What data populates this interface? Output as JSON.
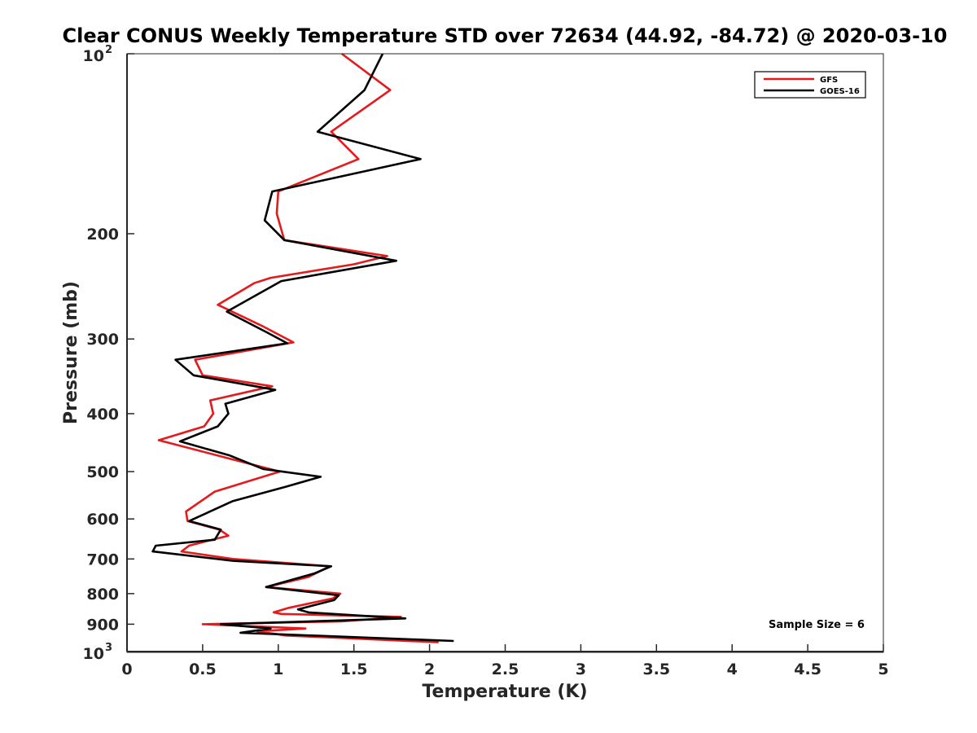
{
  "chart_data": {
    "type": "line",
    "title": "Clear CONUS Weekly Temperature STD over 72634 (44.92, -84.72) @ 2020-03-10",
    "xlabel": "Temperature (K)",
    "ylabel": "Pressure (mb)",
    "xlim": [
      0,
      5
    ],
    "ylim": [
      100,
      1000
    ],
    "y_scale": "log",
    "y_reversed": true,
    "x_ticks": [
      "0",
      "0.5",
      "1",
      "1.5",
      "2",
      "2.5",
      "3",
      "3.5",
      "4",
      "4.5",
      "5"
    ],
    "y_ticks": [
      {
        "value": 100,
        "base": "10",
        "exp": "2"
      },
      {
        "value": 200,
        "label": "200"
      },
      {
        "value": 300,
        "label": "300"
      },
      {
        "value": 400,
        "label": "400"
      },
      {
        "value": 500,
        "label": "500"
      },
      {
        "value": 600,
        "label": "600"
      },
      {
        "value": 700,
        "label": "700"
      },
      {
        "value": 800,
        "label": "800"
      },
      {
        "value": 900,
        "label": "900"
      },
      {
        "value": 1000,
        "base": "10",
        "exp": "3"
      }
    ],
    "legend_position": "top-right",
    "grid": false,
    "annotation": "Sample Size = 6",
    "series": [
      {
        "name": "GFS",
        "color": "#e41a1c",
        "points": [
          [
            1.42,
            100
          ],
          [
            1.74,
            115
          ],
          [
            1.35,
            135
          ],
          [
            1.53,
            150
          ],
          [
            1.0,
            170
          ],
          [
            0.99,
            185
          ],
          [
            1.04,
            205
          ],
          [
            1.72,
            218
          ],
          [
            1.5,
            225
          ],
          [
            0.95,
            237
          ],
          [
            0.84,
            242
          ],
          [
            0.6,
            263
          ],
          [
            0.89,
            285
          ],
          [
            1.1,
            304
          ],
          [
            0.45,
            325
          ],
          [
            0.5,
            345
          ],
          [
            0.96,
            360
          ],
          [
            0.55,
            380
          ],
          [
            0.57,
            400
          ],
          [
            0.51,
            420
          ],
          [
            0.21,
            443
          ],
          [
            0.67,
            475
          ],
          [
            1.01,
            500
          ],
          [
            0.58,
            540
          ],
          [
            0.39,
            583
          ],
          [
            0.4,
            605
          ],
          [
            0.61,
            625
          ],
          [
            0.67,
            640
          ],
          [
            0.41,
            665
          ],
          [
            0.36,
            680
          ],
          [
            0.7,
            700
          ],
          [
            1.34,
            720
          ],
          [
            1.2,
            750
          ],
          [
            0.92,
            780
          ],
          [
            1.41,
            800
          ],
          [
            1.36,
            815
          ],
          [
            1.07,
            845
          ],
          [
            0.97,
            860
          ],
          [
            1.02,
            865
          ],
          [
            1.81,
            875
          ],
          [
            1.42,
            890
          ],
          [
            0.5,
            900
          ],
          [
            1.18,
            915
          ],
          [
            1.02,
            920
          ],
          [
            0.86,
            925
          ],
          [
            1.05,
            940
          ],
          [
            2.06,
            965
          ]
        ]
      },
      {
        "name": "GOES-16",
        "color": "#000000",
        "points": [
          [
            1.69,
            100
          ],
          [
            1.57,
            115
          ],
          [
            1.26,
            135
          ],
          [
            1.94,
            150
          ],
          [
            0.96,
            170
          ],
          [
            0.91,
            190
          ],
          [
            1.04,
            205
          ],
          [
            1.78,
            222
          ],
          [
            1.02,
            240
          ],
          [
            0.66,
            270
          ],
          [
            0.92,
            292
          ],
          [
            1.06,
            305
          ],
          [
            0.32,
            325
          ],
          [
            0.44,
            345
          ],
          [
            0.98,
            365
          ],
          [
            0.65,
            385
          ],
          [
            0.67,
            400
          ],
          [
            0.6,
            420
          ],
          [
            0.35,
            445
          ],
          [
            0.68,
            470
          ],
          [
            0.9,
            495
          ],
          [
            1.28,
            510
          ],
          [
            1.05,
            530
          ],
          [
            0.7,
            560
          ],
          [
            0.41,
            605
          ],
          [
            0.62,
            625
          ],
          [
            0.58,
            650
          ],
          [
            0.19,
            665
          ],
          [
            0.17,
            680
          ],
          [
            0.7,
            705
          ],
          [
            1.35,
            720
          ],
          [
            1.24,
            740
          ],
          [
            0.92,
            780
          ],
          [
            1.4,
            805
          ],
          [
            1.37,
            820
          ],
          [
            1.13,
            850
          ],
          [
            1.2,
            860
          ],
          [
            1.84,
            880
          ],
          [
            0.62,
            900
          ],
          [
            0.95,
            915
          ],
          [
            0.75,
            930
          ],
          [
            2.16,
            960
          ]
        ]
      }
    ]
  }
}
